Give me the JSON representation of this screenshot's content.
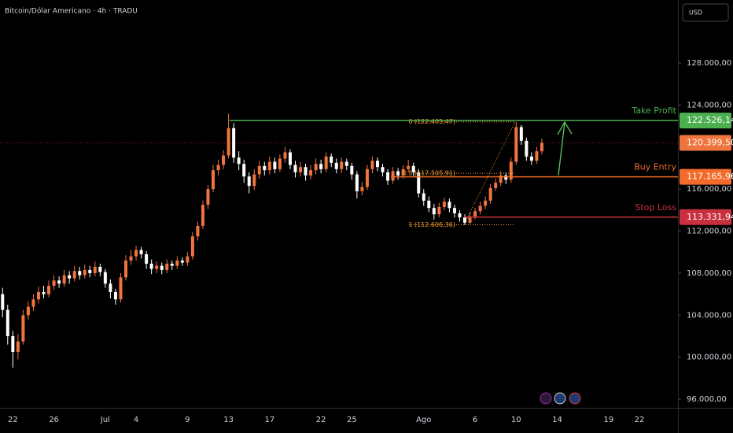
{
  "chart_data": {
    "type": "candlestick",
    "title": "Bitcoin/Dólar Americano · 4h · TRADU",
    "currency": "USD",
    "up_color": "#f0743e",
    "down_color": "#ffffff",
    "categories": [
      null,
      null,
      "22",
      null,
      null,
      null,
      null,
      null,
      null,
      null,
      "26",
      null,
      null,
      null,
      null,
      null,
      null,
      null,
      null,
      null,
      "Jul",
      null,
      null,
      null,
      null,
      null,
      "4",
      null,
      null,
      null,
      null,
      null,
      null,
      null,
      null,
      null,
      "9",
      null,
      null,
      null,
      null,
      null,
      null,
      null,
      "13",
      null,
      null,
      null,
      null,
      null,
      null,
      null,
      "17",
      null,
      null,
      null,
      null,
      null,
      null,
      null,
      null,
      null,
      "22",
      null,
      null,
      null,
      null,
      null,
      "25",
      null,
      null,
      null,
      null,
      null,
      null,
      null,
      null,
      null,
      null,
      null,
      null,
      null,
      "Ago",
      null,
      null,
      null,
      null,
      null,
      null,
      null,
      null,
      null,
      "6",
      null,
      null,
      null,
      null,
      null,
      null,
      null,
      "10",
      null,
      null,
      null,
      null,
      null,
      null,
      null,
      "14",
      null,
      null,
      null,
      null,
      null,
      null,
      null,
      null,
      null,
      "19",
      null,
      null,
      null,
      null,
      null,
      "22",
      null,
      null,
      null,
      null,
      null,
      null,
      null
    ],
    "open": [
      106000,
      104500,
      102000,
      100500,
      101500,
      104000,
      104800,
      105500,
      106200,
      106000,
      106800,
      107300,
      107000,
      107800,
      107500,
      108200,
      107800,
      108300,
      108000,
      108600,
      108100,
      107000,
      106200,
      105500,
      107600,
      109200,
      109600,
      110200,
      109800,
      108900,
      108400,
      108700,
      108300,
      108900,
      108700,
      109200,
      109000,
      109600,
      111500,
      112500,
      114500,
      116000,
      117800,
      118300,
      119200,
      121800,
      119000,
      118400,
      117200,
      116300,
      117400,
      118200,
      117800,
      118600,
      117900,
      118900,
      119500,
      118300,
      117600,
      118100,
      117300,
      117800,
      118400,
      117900,
      119100,
      118500,
      117900,
      118600,
      118200,
      117400,
      115800,
      116200,
      117900,
      118700,
      118100,
      117600,
      116800,
      117700,
      117300,
      117900,
      118200,
      117600,
      115600,
      114900,
      114200,
      113600,
      114300,
      114800,
      114200,
      113700,
      113300,
      112800,
      113400,
      113900,
      114400,
      114900,
      116100,
      116600,
      117300,
      116900,
      118600,
      121900,
      120600,
      119100,
      118700,
      119600,
      null,
      null,
      null,
      null,
      null,
      null,
      null,
      null,
      null,
      null,
      null,
      null,
      null,
      null,
      null,
      null,
      null,
      null,
      null,
      null,
      null,
      null,
      null,
      null,
      null,
      null
    ],
    "high": [
      106600,
      105000,
      102500,
      102200,
      104500,
      105300,
      106000,
      106700,
      106800,
      107300,
      107800,
      107700,
      108300,
      108200,
      108700,
      108600,
      108800,
      108700,
      109100,
      108900,
      108400,
      107400,
      106500,
      108000,
      109700,
      110200,
      110600,
      110500,
      110100,
      109300,
      109100,
      109000,
      109300,
      109200,
      109600,
      109500,
      110000,
      111900,
      112900,
      114900,
      116400,
      118300,
      118800,
      119700,
      123200,
      122300,
      119600,
      118800,
      117600,
      117900,
      118700,
      118600,
      119100,
      119000,
      119300,
      120000,
      119800,
      118700,
      118600,
      118400,
      118300,
      118900,
      118800,
      119500,
      119400,
      118900,
      119000,
      118900,
      118500,
      117700,
      116700,
      118300,
      119100,
      119000,
      118400,
      117900,
      118100,
      118000,
      118300,
      118800,
      118500,
      117900,
      116000,
      115300,
      114600,
      114700,
      115200,
      115100,
      114500,
      114000,
      113600,
      113800,
      114200,
      114800,
      115300,
      116500,
      117000,
      117700,
      117600,
      119000,
      122400,
      122100,
      120900,
      119500,
      120000,
      120800,
      null,
      null,
      null,
      null,
      null,
      null,
      null,
      null,
      null,
      null,
      null,
      null,
      null,
      null,
      null,
      null,
      null,
      null,
      null,
      null,
      null,
      null,
      null,
      null,
      null,
      null
    ],
    "low": [
      103800,
      101200,
      99000,
      99800,
      101200,
      103600,
      104400,
      105100,
      105600,
      105700,
      106400,
      106600,
      106700,
      107000,
      107200,
      107400,
      107500,
      107600,
      107700,
      107700,
      106600,
      105600,
      105000,
      105200,
      107300,
      108800,
      109200,
      109400,
      108400,
      107900,
      108000,
      107900,
      108000,
      108300,
      108400,
      108700,
      108700,
      109300,
      111100,
      112200,
      114100,
      115700,
      117300,
      117900,
      118900,
      118500,
      117800,
      116600,
      115600,
      115900,
      117000,
      117300,
      117400,
      117500,
      117600,
      118500,
      117900,
      117100,
      117200,
      116800,
      116900,
      117400,
      117500,
      117600,
      118100,
      117500,
      117500,
      117800,
      116900,
      115100,
      115400,
      115900,
      117500,
      117700,
      117200,
      116400,
      116500,
      116900,
      117000,
      117600,
      117200,
      115200,
      114400,
      113800,
      113100,
      113300,
      114000,
      113800,
      113300,
      112900,
      112600,
      112700,
      113100,
      113600,
      114100,
      114600,
      115800,
      116300,
      116500,
      116600,
      118300,
      120200,
      118700,
      118300,
      118400,
      119300,
      null,
      null,
      null,
      null,
      null,
      null,
      null,
      null,
      null,
      null,
      null,
      null,
      null,
      null,
      null,
      null,
      null,
      null,
      null,
      null,
      null,
      null,
      null,
      null,
      null,
      null
    ],
    "close": [
      104500,
      102000,
      100500,
      101500,
      104000,
      104800,
      105500,
      106200,
      106000,
      106800,
      107300,
      107000,
      107800,
      107500,
      108200,
      107800,
      108300,
      108000,
      108600,
      108100,
      107000,
      106200,
      105500,
      107600,
      109200,
      109600,
      110200,
      109800,
      108900,
      108400,
      108700,
      108300,
      108900,
      108700,
      109200,
      109000,
      109600,
      111500,
      112500,
      114500,
      116000,
      117800,
      118300,
      119200,
      121800,
      119000,
      118400,
      117200,
      116300,
      117400,
      118200,
      117800,
      118600,
      117900,
      118900,
      119500,
      118300,
      117600,
      118100,
      117300,
      117800,
      118400,
      117900,
      119100,
      118500,
      117900,
      118600,
      118200,
      117400,
      115800,
      116200,
      117900,
      118700,
      118100,
      117600,
      116800,
      117700,
      117300,
      117900,
      118200,
      117600,
      115600,
      114900,
      114200,
      113600,
      114300,
      114800,
      114200,
      113700,
      113300,
      112800,
      113400,
      113900,
      114400,
      114900,
      116100,
      116600,
      117300,
      116900,
      118600,
      121900,
      120600,
      119100,
      118700,
      119600,
      120400,
      null,
      null,
      null,
      null,
      null,
      null,
      null,
      null,
      null,
      null,
      null,
      null,
      null,
      null,
      null,
      null,
      null,
      null,
      null,
      null,
      null,
      null,
      null,
      null,
      null,
      null
    ],
    "ylim": [
      95180,
      134000
    ],
    "yticks": [
      {
        "value": 96000,
        "label": "96.000,00"
      },
      {
        "value": 100000,
        "label": "100.000,00"
      },
      {
        "value": 104000,
        "label": "104.000,00"
      },
      {
        "value": 108000,
        "label": "108.000,00"
      },
      {
        "value": 112000,
        "label": "112.000,00"
      },
      {
        "value": 116000,
        "label": "116.000,00"
      },
      {
        "value": 124000,
        "label": "124.000,00"
      },
      {
        "value": 128000,
        "label": "128.000,00"
      }
    ],
    "last_price": {
      "value": 120399.5,
      "label": "120.399,50",
      "color": "#f0743e"
    },
    "levels": [
      {
        "name": "Take Profit",
        "value": 122526.14,
        "label": "122.526,14",
        "color": "#4caf50"
      },
      {
        "name": "Buy Entry",
        "value": 117165.96,
        "label": "117.165,96",
        "color": "#f26b2a"
      },
      {
        "name": "Stop Loss",
        "value": 113331.94,
        "label": "113.331,94",
        "color": "#c8303d"
      }
    ],
    "fib_levels": [
      {
        "value": 122405.47,
        "label": "0 (122.405,47)"
      },
      {
        "value": 117505.91,
        "label": "0.5 (117.505,91)"
      },
      {
        "value": 112606.36,
        "label": "1 (112.606,36)"
      }
    ],
    "fib_color": "#f5a030"
  }
}
